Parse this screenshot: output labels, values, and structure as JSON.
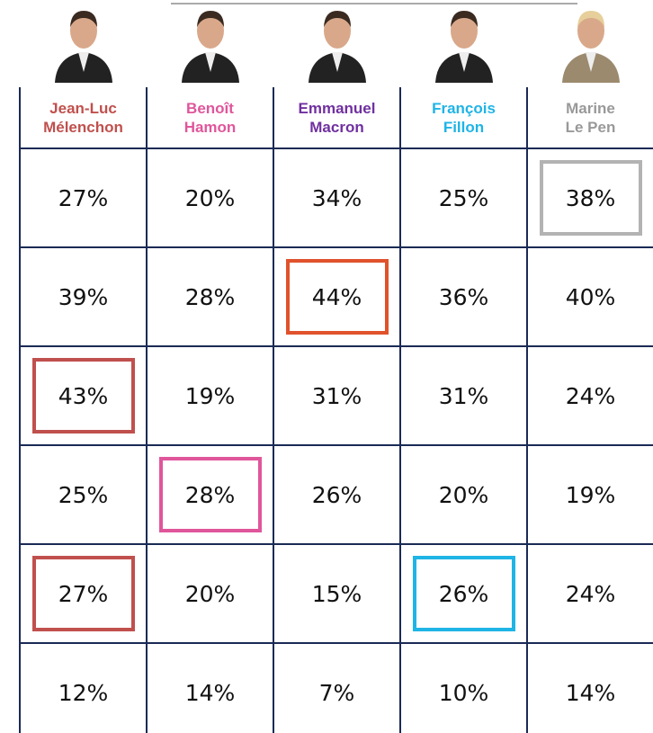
{
  "columns": [
    {
      "name": [
        "Jean-Luc",
        "Mélenchon"
      ],
      "color": "#c0504d"
    },
    {
      "name": [
        "Benoît",
        "Hamon"
      ],
      "color": "#e0569b"
    },
    {
      "name": [
        "Emmanuel",
        "Macron"
      ],
      "color": "#7030a0"
    },
    {
      "name": [
        "François",
        "Fillon"
      ],
      "color": "#1fb4e6"
    },
    {
      "name": [
        "Marine",
        "Le Pen"
      ],
      "color": "#999999"
    }
  ],
  "table": {
    "rows": [
      [
        "27%",
        "20%",
        "34%",
        "25%",
        "38%"
      ],
      [
        "39%",
        "28%",
        "44%",
        "36%",
        "40%"
      ],
      [
        "43%",
        "19%",
        "31%",
        "31%",
        "24%"
      ],
      [
        "25%",
        "28%",
        "26%",
        "20%",
        "19%"
      ],
      [
        "27%",
        "20%",
        "15%",
        "26%",
        "24%"
      ],
      [
        "12%",
        "14%",
        "7%",
        "10%",
        "14%"
      ]
    ]
  },
  "highlights": [
    {
      "row": 0,
      "col": 4,
      "color": "#b3b3b3"
    },
    {
      "row": 1,
      "col": 2,
      "color": "#e0522c"
    },
    {
      "row": 2,
      "col": 0,
      "color": "#c0504d"
    },
    {
      "row": 3,
      "col": 1,
      "color": "#e0569b"
    },
    {
      "row": 4,
      "col": 0,
      "color": "#c0504d"
    },
    {
      "row": 4,
      "col": 3,
      "color": "#1fb4e6"
    }
  ]
}
